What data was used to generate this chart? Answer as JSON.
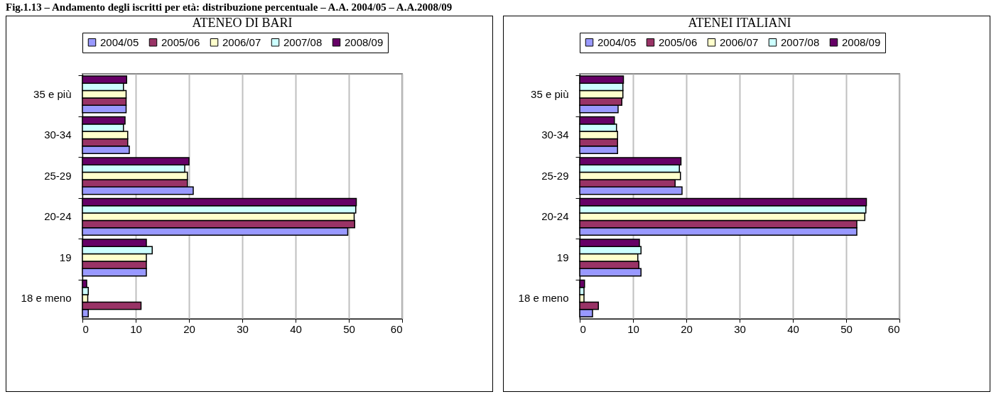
{
  "chart_data": [
    {
      "type": "bar",
      "orientation": "horizontal",
      "title": "ATENEO DI BARI",
      "annotations": [
        "Fig.1.13 – Andamento degli iscritti per età: distribuzione percentuale – A.A. 2004/05 – A.A.2008/09"
      ],
      "categories": [
        "35 e più",
        "30-34",
        "25-29",
        "20-24",
        "19",
        "18 e meno"
      ],
      "series": [
        {
          "name": "2004/05",
          "color": "#9999ff",
          "values": [
            8.2,
            8.8,
            20.8,
            49.8,
            12.0,
            1.1
          ]
        },
        {
          "name": "2005/06",
          "color": "#993366",
          "values": [
            8.2,
            8.5,
            19.7,
            51.1,
            12.0,
            11.0
          ]
        },
        {
          "name": "2006/07",
          "color": "#ffffcc",
          "values": [
            8.2,
            8.5,
            19.7,
            51.0,
            12.0,
            1.0
          ]
        },
        {
          "name": "2007/08",
          "color": "#ccffff",
          "values": [
            7.7,
            7.7,
            19.2,
            51.3,
            13.1,
            1.1
          ]
        },
        {
          "name": "2008/09",
          "color": "#660066",
          "values": [
            8.3,
            8.0,
            20.0,
            51.4,
            12.0,
            0.8
          ]
        }
      ],
      "xlim": [
        0,
        60
      ],
      "xticks": [
        0,
        10,
        20,
        30,
        40,
        50,
        60
      ],
      "grid": "x",
      "legend": "top"
    },
    {
      "type": "bar",
      "orientation": "horizontal",
      "title": "ATENEI ITALIANI",
      "categories": [
        "35 e più",
        "30-34",
        "25-29",
        "20-24",
        "19",
        "18 e meno"
      ],
      "series": [
        {
          "name": "2004/05",
          "color": "#9999ff",
          "values": [
            7.2,
            7.1,
            19.2,
            52.0,
            11.5,
            2.4
          ]
        },
        {
          "name": "2005/06",
          "color": "#993366",
          "values": [
            7.9,
            7.1,
            17.9,
            52.0,
            11.1,
            3.5
          ]
        },
        {
          "name": "2006/07",
          "color": "#ffffcc",
          "values": [
            8.1,
            7.1,
            18.9,
            53.5,
            10.9,
            0.8
          ]
        },
        {
          "name": "2007/08",
          "color": "#ccffff",
          "values": [
            8.1,
            6.9,
            18.7,
            53.7,
            11.5,
            0.8
          ]
        },
        {
          "name": "2008/09",
          "color": "#660066",
          "values": [
            8.2,
            6.5,
            19.0,
            53.8,
            11.2,
            0.9
          ]
        }
      ],
      "xlim": [
        0,
        60
      ],
      "xticks": [
        0,
        10,
        20,
        30,
        40,
        50,
        60
      ],
      "grid": "x",
      "legend": "top"
    }
  ]
}
